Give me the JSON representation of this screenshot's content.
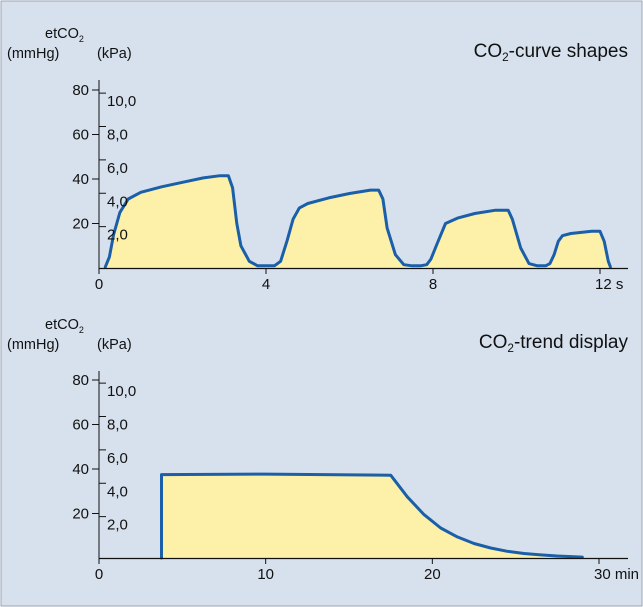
{
  "colors": {
    "background": "#d7e1ee",
    "border": "#9aa6b8",
    "curve": "#1a5fa8",
    "fill": "#fdf0a8",
    "axis": "#111111"
  },
  "chart_data": [
    {
      "type": "area",
      "title": "CO₂-curve shapes",
      "y_left_title": "etCO₂",
      "y_left_unit": "(mmHg)",
      "y_right_unit": "(kPa)",
      "y_left_ticks": [
        "20",
        "40",
        "60",
        "80"
      ],
      "y_left_values": [
        20,
        40,
        60,
        80
      ],
      "y_right_ticks": [
        "2,0",
        "4,0",
        "6,0",
        "8,0",
        "10,0"
      ],
      "y_right_values": [
        2,
        4,
        6,
        8,
        10
      ],
      "x_ticks": [
        "0",
        "4",
        "8",
        "12 s"
      ],
      "x_values": [
        0,
        4,
        8,
        12
      ],
      "xlim": [
        0,
        12.4
      ],
      "ylim": [
        0,
        90
      ],
      "series": [
        {
          "x": [
            0.15,
            0.25,
            0.35,
            0.5,
            0.7,
            1.0,
            1.5,
            2.0,
            2.5,
            2.9,
            3.1,
            3.2,
            3.3,
            3.4,
            3.6,
            3.8,
            4.0,
            4.2,
            4.35,
            4.5,
            4.65,
            4.8,
            5.0,
            5.5,
            6.0,
            6.5,
            6.7,
            6.8,
            6.9,
            7.1,
            7.3,
            7.5,
            7.7,
            7.85,
            7.95,
            8.1,
            8.3,
            8.6,
            9.0,
            9.5,
            9.8,
            9.9,
            10.1,
            10.3,
            10.5,
            10.7,
            10.8,
            10.9,
            11.0,
            11.1,
            11.3,
            11.8,
            12.0,
            12.1,
            12.2,
            12.25
          ],
          "y": [
            0.5,
            5,
            15,
            25,
            31,
            34,
            36.5,
            38.5,
            40.5,
            41.5,
            41.5,
            36,
            20,
            10,
            3,
            1,
            1,
            1,
            3,
            12,
            22,
            27,
            29,
            31.5,
            33.5,
            35,
            35,
            31,
            18,
            6,
            1.5,
            1,
            1,
            1.5,
            4,
            11,
            20,
            22.5,
            24.5,
            26,
            26,
            22,
            9,
            2,
            1,
            1,
            2,
            6,
            12,
            14.5,
            15.5,
            16.5,
            16.5,
            12,
            3,
            0.5
          ]
        }
      ]
    },
    {
      "type": "area",
      "title": "CO₂-trend display",
      "y_left_title": "etCO₂",
      "y_left_unit": "(mmHg)",
      "y_right_unit": "(kPa)",
      "y_left_ticks": [
        "20",
        "40",
        "60",
        "80"
      ],
      "y_left_values": [
        20,
        40,
        60,
        80
      ],
      "y_right_ticks": [
        "2,0",
        "4,0",
        "6,0",
        "8,0",
        "10,0"
      ],
      "y_right_values": [
        2,
        4,
        6,
        8,
        10
      ],
      "x_ticks": [
        "0",
        "10",
        "20",
        "30 min"
      ],
      "x_values": [
        0,
        10,
        20,
        30
      ],
      "xlim": [
        0,
        31
      ],
      "ylim": [
        0,
        90
      ],
      "series": [
        {
          "x": [
            3.75,
            3.75,
            10,
            17.5,
            18.5,
            19.5,
            20.5,
            21.5,
            22.5,
            23.5,
            24.5,
            25.5,
            26.5,
            27.5,
            28.5,
            29.0
          ],
          "y": [
            0,
            37.5,
            37.7,
            37.2,
            27.5,
            19.5,
            13.5,
            9.5,
            6.5,
            4.5,
            3,
            2,
            1.4,
            0.9,
            0.6,
            0.4
          ]
        }
      ]
    }
  ]
}
